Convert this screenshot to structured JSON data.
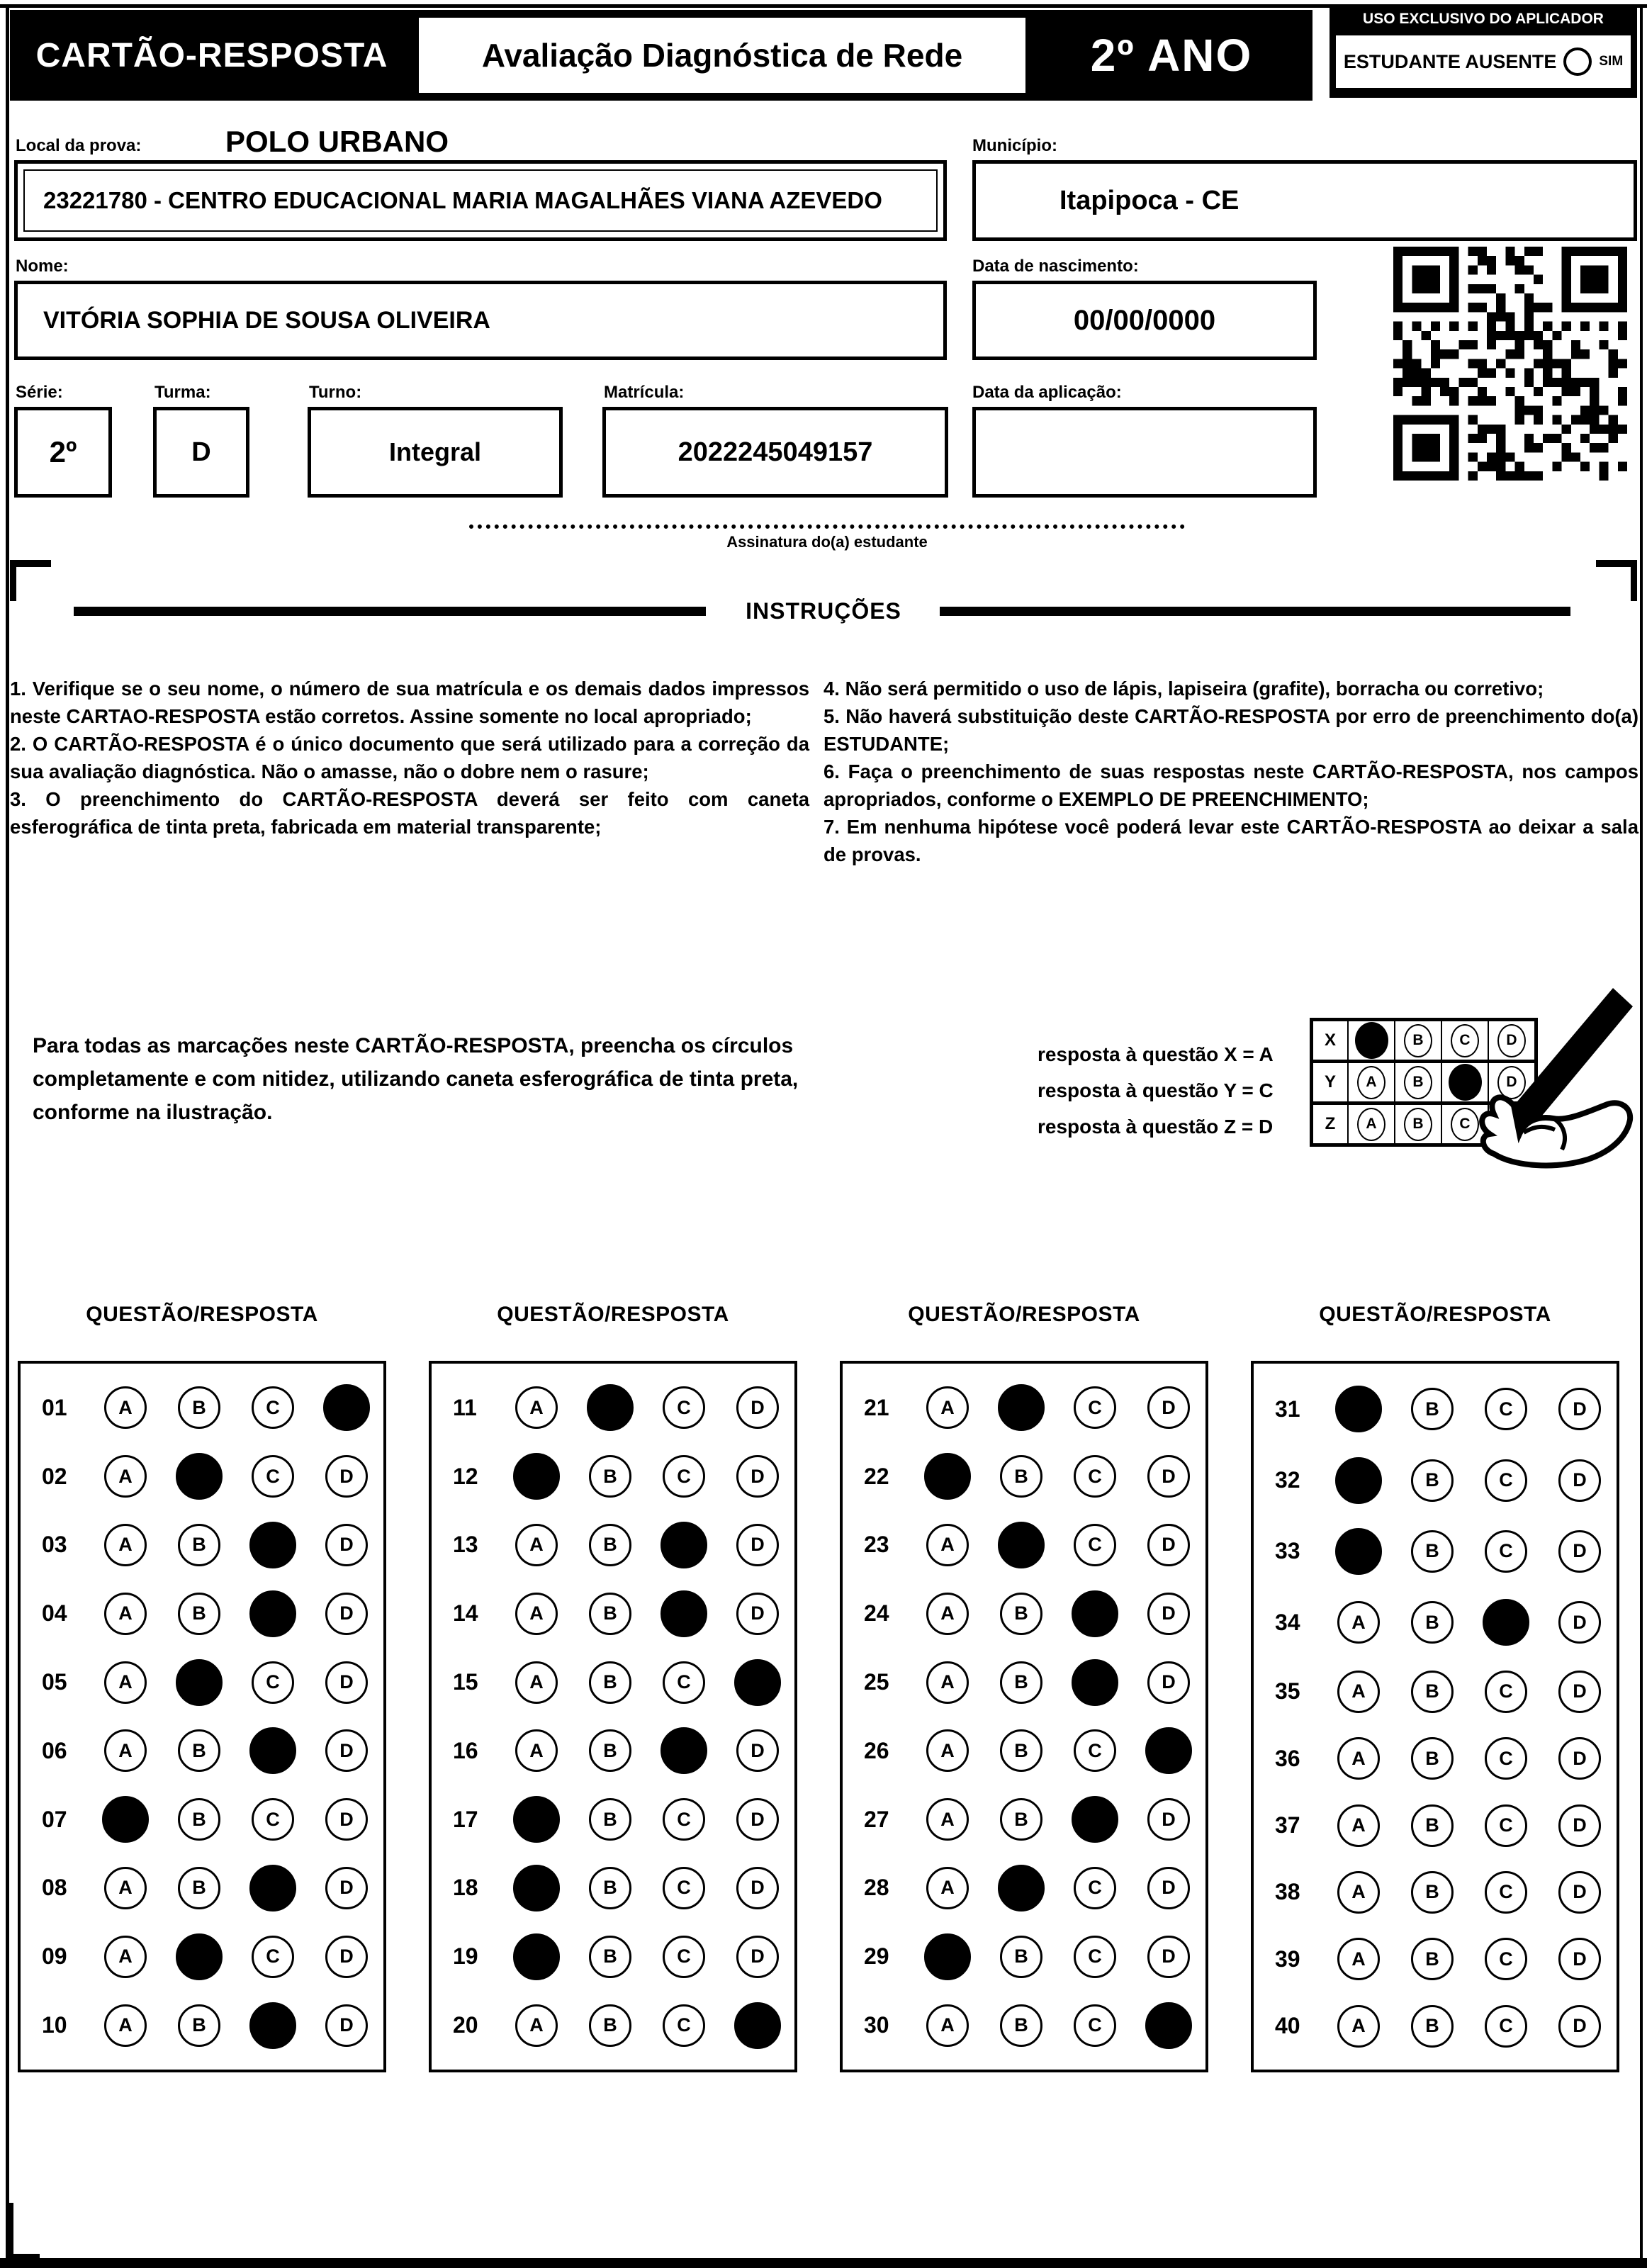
{
  "header": {
    "card_title": "CARTÃO-RESPOSTA",
    "exam_title": "Avaliação Diagnóstica de Rede",
    "grade_badge": "2º ANO",
    "applicator_box": {
      "title": "USO EXCLUSIVO DO APLICADOR",
      "absent_label": "ESTUDANTE AUSENTE",
      "absent_option": "SIM"
    }
  },
  "student": {
    "local_label": "Local da prova:",
    "local_type": "POLO URBANO",
    "school": "23221780 - CENTRO EDUCACIONAL MARIA MAGALHÃES VIANA AZEVEDO",
    "municipality_label": "Município:",
    "municipality": "Itapipoca - CE",
    "name_label": "Nome:",
    "name": "VITÓRIA SOPHIA DE SOUSA OLIVEIRA",
    "birthdate_label": "Data de nascimento:",
    "birthdate": "00/00/0000",
    "serie_label": "Série:",
    "serie": "2º",
    "turma_label": "Turma:",
    "turma": "D",
    "turno_label": "Turno:",
    "turno": "Integral",
    "matricula_label": "Matrícula:",
    "matricula": "2022245049157",
    "aplicacao_label": "Data da aplicação:",
    "aplicacao": ""
  },
  "signature": {
    "label": "Assinatura do(a) estudante"
  },
  "instructions": {
    "title": "INSTRUÇÕES",
    "left": [
      "1. Verifique se o seu nome, o número de sua matrícula e os demais dados impressos neste CARTAO-RESPOSTA estão corretos. Assine somente no local apropriado;",
      "2. O CARTÃO-RESPOSTA é o único documento que será utilizado para a correção da sua avaliação diagnóstica. Não o amasse, não o dobre nem o rasure;",
      "3. O preenchimento do CARTÃO-RESPOSTA deverá ser feito com caneta esferográfica de tinta preta, fabricada em material transparente;"
    ],
    "right": [
      "4. Não será permitido o uso de lápis, lapiseira (grafite), borracha ou corretivo;",
      "5. Não haverá substituição deste CARTÃO-RESPOSTA por erro de preenchimento do(a) ESTUDANTE;",
      "6. Faça o preenchimento de suas respostas neste CARTÃO-RESPOSTA, nos campos apropriados, conforme o EXEMPLO DE PREENCHIMENTO;",
      "7. Em nenhuma hipótese você poderá levar este CARTÃO-RESPOSTA ao deixar a sala de provas."
    ]
  },
  "example": {
    "paragraph": "Para todas as marcações neste CARTÃO-RESPOSTA, preencha os círculos completamente e com nitidez, utilizando caneta esferográfica de tinta preta, conforme na ilustração.",
    "legend": [
      "resposta à questão X = A",
      "resposta à questão Y = C",
      "resposta à questão Z = D"
    ],
    "rows": [
      {
        "label": "X",
        "filled": "A"
      },
      {
        "label": "Y",
        "filled": "C"
      },
      {
        "label": "Z",
        "filled": "D"
      }
    ]
  },
  "answers": {
    "column_header": "QUESTÃO/RESPOSTA",
    "options": [
      "A",
      "B",
      "C",
      "D"
    ],
    "columns": [
      [
        {
          "n": "01",
          "marked": "D"
        },
        {
          "n": "02",
          "marked": "B"
        },
        {
          "n": "03",
          "marked": "C"
        },
        {
          "n": "04",
          "marked": "C"
        },
        {
          "n": "05",
          "marked": "B"
        },
        {
          "n": "06",
          "marked": "C"
        },
        {
          "n": "07",
          "marked": "A"
        },
        {
          "n": "08",
          "marked": "C"
        },
        {
          "n": "09",
          "marked": "B"
        },
        {
          "n": "10",
          "marked": "C"
        }
      ],
      [
        {
          "n": "11",
          "marked": "B"
        },
        {
          "n": "12",
          "marked": "A"
        },
        {
          "n": "13",
          "marked": "C"
        },
        {
          "n": "14",
          "marked": "C"
        },
        {
          "n": "15",
          "marked": "D"
        },
        {
          "n": "16",
          "marked": "C"
        },
        {
          "n": "17",
          "marked": "A"
        },
        {
          "n": "18",
          "marked": "A"
        },
        {
          "n": "19",
          "marked": "A"
        },
        {
          "n": "20",
          "marked": "D"
        }
      ],
      [
        {
          "n": "21",
          "marked": "B"
        },
        {
          "n": "22",
          "marked": "A"
        },
        {
          "n": "23",
          "marked": "B"
        },
        {
          "n": "24",
          "marked": "C"
        },
        {
          "n": "25",
          "marked": "C"
        },
        {
          "n": "26",
          "marked": "D"
        },
        {
          "n": "27",
          "marked": "C"
        },
        {
          "n": "28",
          "marked": "B"
        },
        {
          "n": "29",
          "marked": "A"
        },
        {
          "n": "30",
          "marked": "D"
        }
      ],
      [
        {
          "n": "31",
          "marked": "A"
        },
        {
          "n": "32",
          "marked": "A"
        },
        {
          "n": "33",
          "marked": "A"
        },
        {
          "n": "34",
          "marked": "C"
        },
        {
          "n": "35",
          "marked": ""
        },
        {
          "n": "36",
          "marked": ""
        },
        {
          "n": "37",
          "marked": ""
        },
        {
          "n": "38",
          "marked": ""
        },
        {
          "n": "39",
          "marked": ""
        },
        {
          "n": "40",
          "marked": ""
        }
      ]
    ]
  }
}
